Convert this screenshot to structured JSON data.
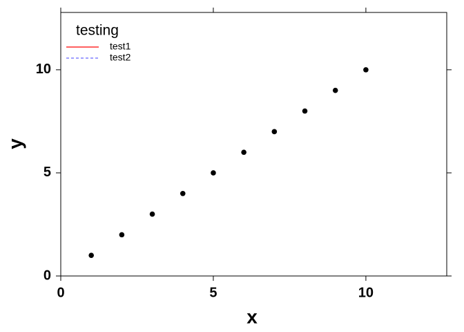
{
  "chart_data": {
    "type": "scatter",
    "x_label": "x",
    "y_label": "y",
    "x": [
      1,
      2,
      3,
      4,
      5,
      6,
      7,
      8,
      9,
      10
    ],
    "series": [
      {
        "values": [
          1,
          2,
          3,
          4,
          5,
          6,
          7,
          8,
          9,
          10
        ],
        "color": "#000000"
      }
    ],
    "xlim": [
      0,
      12.65
    ],
    "ylim": [
      0,
      12.78
    ],
    "xticks": [
      0,
      5,
      10
    ],
    "yticks": [
      0,
      5,
      10
    ],
    "legend": {
      "title": "testing",
      "position": "top-left",
      "entries": [
        {
          "name": "test1",
          "color": "#ff0000",
          "dashed": false
        },
        {
          "name": "test2",
          "color": "#6666ff",
          "dashed": true
        }
      ]
    }
  }
}
